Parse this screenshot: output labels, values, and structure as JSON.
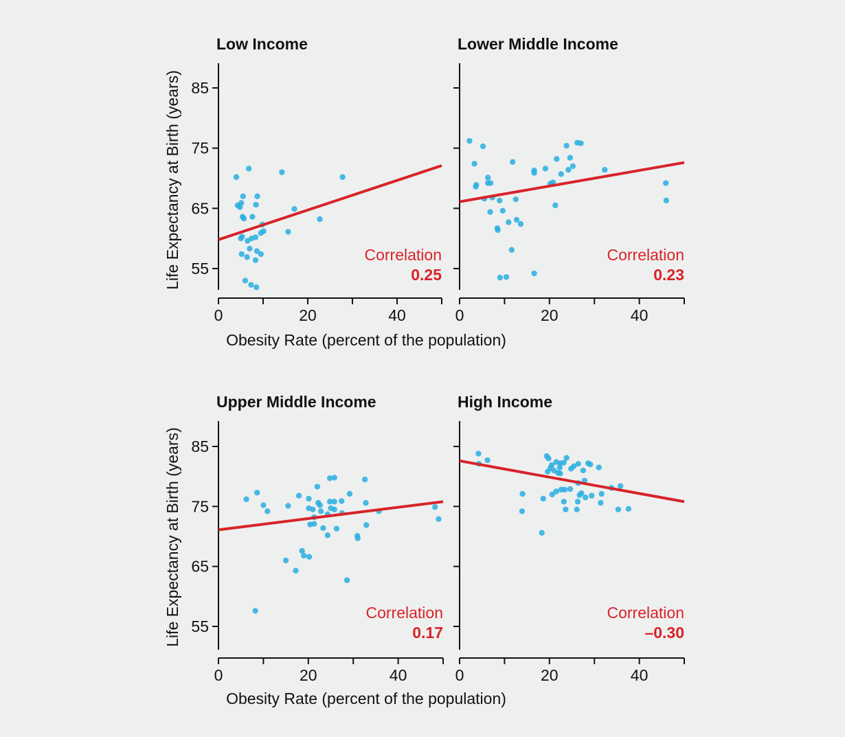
{
  "colors": {
    "background": "#eef0ef",
    "point": "#29aee0",
    "trend": "#d8232a",
    "correlation": "#d8232a",
    "axis": "#111111"
  },
  "axes_text": {
    "ylabel": "Life Expectancy at Birth (years)",
    "xlabel": "Obesity Rate (percent of the population)",
    "correlation_label": "Correlation"
  },
  "chart_data": [
    {
      "type": "scatter",
      "title": "Low Income",
      "xlabel": "Obesity Rate (percent of the population)",
      "ylabel": "Life Expectancy at Birth (years)",
      "xlim": [
        0,
        50
      ],
      "ylim": [
        51,
        90
      ],
      "xticks": [
        0,
        20,
        40
      ],
      "yticks": [
        55,
        65,
        75,
        85
      ],
      "correlation": "0.25",
      "trend": [
        [
          0,
          59.8
        ],
        [
          50,
          72.1
        ]
      ],
      "points": [
        [
          4,
          70.2
        ],
        [
          6.8,
          71.6
        ],
        [
          14.2,
          71
        ],
        [
          27.8,
          70.2
        ],
        [
          5.5,
          67
        ],
        [
          8.7,
          67
        ],
        [
          4.3,
          65.5
        ],
        [
          5.1,
          65.9
        ],
        [
          4.8,
          65.2
        ],
        [
          8.4,
          65.6
        ],
        [
          17,
          64.9
        ],
        [
          5.4,
          63.6
        ],
        [
          5.7,
          63.3
        ],
        [
          7.6,
          63.6
        ],
        [
          22.7,
          63.2
        ],
        [
          9.8,
          62.3
        ],
        [
          10.1,
          61.2
        ],
        [
          9.5,
          60.9
        ],
        [
          15.6,
          61.1
        ],
        [
          5.3,
          60.3
        ],
        [
          5.0,
          60.0
        ],
        [
          6.5,
          59.6
        ],
        [
          7.4,
          60.0
        ],
        [
          8.3,
          60.2
        ],
        [
          7.0,
          58.3
        ],
        [
          8.6,
          57.9
        ],
        [
          9.5,
          57.4
        ],
        [
          5.2,
          57.4
        ],
        [
          6.4,
          56.9
        ],
        [
          8.3,
          56.4
        ],
        [
          6.0,
          53.0
        ],
        [
          7.3,
          52.3
        ],
        [
          8.5,
          51.9
        ]
      ]
    },
    {
      "type": "scatter",
      "title": "Lower Middle Income",
      "xlabel": "",
      "ylabel": "",
      "xlim": [
        0,
        50
      ],
      "ylim": [
        51,
        90
      ],
      "xticks": [
        0,
        20,
        40
      ],
      "yticks": [
        55,
        65,
        75,
        85
      ],
      "correlation": "0.23",
      "trend": [
        [
          0,
          66.1
        ],
        [
          50,
          72.6
        ]
      ],
      "points": [
        [
          2.2,
          76.2
        ],
        [
          5.2,
          75.3
        ],
        [
          23.8,
          75.4
        ],
        [
          26.2,
          75.9
        ],
        [
          27,
          75.8
        ],
        [
          3.3,
          72.4
        ],
        [
          11.8,
          72.7
        ],
        [
          21.6,
          73.2
        ],
        [
          24.6,
          73.4
        ],
        [
          16.6,
          71.3
        ],
        [
          16.6,
          70.9
        ],
        [
          19.1,
          71.6
        ],
        [
          24.2,
          71.4
        ],
        [
          25.2,
          72.0
        ],
        [
          22.6,
          70.7
        ],
        [
          32.3,
          71.4
        ],
        [
          3.7,
          68.9
        ],
        [
          3.6,
          68.6
        ],
        [
          6.3,
          70.1
        ],
        [
          6.3,
          69.2
        ],
        [
          6.9,
          69.2
        ],
        [
          20.2,
          69.1
        ],
        [
          20.8,
          69.3
        ],
        [
          45.9,
          69.2
        ],
        [
          5.5,
          66.6
        ],
        [
          7.3,
          66.8
        ],
        [
          8.9,
          66.3
        ],
        [
          12.5,
          66.5
        ],
        [
          21.3,
          65.5
        ],
        [
          46.0,
          66.3
        ],
        [
          6.8,
          64.4
        ],
        [
          9.6,
          64.6
        ],
        [
          8.4,
          61.7
        ],
        [
          8.5,
          61.4
        ],
        [
          10.9,
          62.7
        ],
        [
          12.7,
          63.1
        ],
        [
          13.6,
          62.4
        ],
        [
          11.6,
          58.1
        ],
        [
          16.6,
          54.2
        ],
        [
          9.0,
          53.5
        ],
        [
          10.4,
          53.6
        ]
      ]
    },
    {
      "type": "scatter",
      "title": "Upper Middle Income",
      "xlabel": "Obesity Rate (percent of the population)",
      "ylabel": "Life Expectancy at Birth (years)",
      "xlim": [
        0,
        50
      ],
      "ylim": [
        51,
        90
      ],
      "xticks": [
        0,
        20,
        40
      ],
      "yticks": [
        55,
        65,
        75,
        85
      ],
      "correlation": "0.17",
      "trend": [
        [
          0,
          71.1
        ],
        [
          50,
          75.8
        ]
      ],
      "points": [
        [
          24.8,
          79.7
        ],
        [
          25.8,
          79.8
        ],
        [
          32.6,
          79.5
        ],
        [
          22,
          78.3
        ],
        [
          8.6,
          77.3
        ],
        [
          17.9,
          76.8
        ],
        [
          29.2,
          77.1
        ],
        [
          6.2,
          76.2
        ],
        [
          20.1,
          76.3
        ],
        [
          24.8,
          75.8
        ],
        [
          25.8,
          75.8
        ],
        [
          27.4,
          75.9
        ],
        [
          32.8,
          75.6
        ],
        [
          22.2,
          75.6
        ],
        [
          22.6,
          75.2
        ],
        [
          10.0,
          75.2
        ],
        [
          15.5,
          75.1
        ],
        [
          20.1,
          74.7
        ],
        [
          21.0,
          74.5
        ],
        [
          22.8,
          74.2
        ],
        [
          25.0,
          74.7
        ],
        [
          25.8,
          74.5
        ],
        [
          35.7,
          74.2
        ],
        [
          48.2,
          74.9
        ],
        [
          10.9,
          74.2
        ],
        [
          24.3,
          73.7
        ],
        [
          27.5,
          73.9
        ],
        [
          21.3,
          73.2
        ],
        [
          20.4,
          72.0
        ],
        [
          21.3,
          72.1
        ],
        [
          49.0,
          72.9
        ],
        [
          23.3,
          71.4
        ],
        [
          26.3,
          71.3
        ],
        [
          32.9,
          71.9
        ],
        [
          24.3,
          70.2
        ],
        [
          30.9,
          70.1
        ],
        [
          31.0,
          69.7
        ],
        [
          18.6,
          67.6
        ],
        [
          19.0,
          66.8
        ],
        [
          20.2,
          66.6
        ],
        [
          15.0,
          66.0
        ],
        [
          17.2,
          64.3
        ],
        [
          28.6,
          62.7
        ],
        [
          8.2,
          57.6
        ]
      ]
    },
    {
      "type": "scatter",
      "title": "High Income",
      "xlabel": "",
      "ylabel": "",
      "xlim": [
        0,
        50
      ],
      "ylim": [
        51,
        90
      ],
      "xticks": [
        0,
        20,
        40
      ],
      "yticks": [
        55,
        65,
        75,
        85
      ],
      "correlation": "–0.30",
      "trend": [
        [
          0,
          82.6
        ],
        [
          50,
          75.8
        ]
      ],
      "points": [
        [
          4.2,
          83.8
        ],
        [
          6.2,
          82.7
        ],
        [
          4.3,
          82.1
        ],
        [
          19.4,
          83.4
        ],
        [
          19.8,
          83.0
        ],
        [
          23.8,
          83.1
        ],
        [
          21.5,
          82.4
        ],
        [
          22.4,
          82.2
        ],
        [
          23.2,
          82.3
        ],
        [
          26.4,
          82.1
        ],
        [
          28.6,
          82.2
        ],
        [
          29.1,
          82.0
        ],
        [
          20.5,
          81.9
        ],
        [
          25.4,
          81.7
        ],
        [
          31.0,
          81.5
        ],
        [
          20.2,
          81.4
        ],
        [
          21.0,
          81.0
        ],
        [
          22.3,
          81.5
        ],
        [
          24.8,
          81.3
        ],
        [
          27.5,
          81.0
        ],
        [
          19.6,
          80.8
        ],
        [
          21.9,
          80.6
        ],
        [
          22.4,
          80.5
        ],
        [
          26.4,
          78.9
        ],
        [
          27.8,
          79.3
        ],
        [
          33.8,
          78.1
        ],
        [
          35.8,
          78.4
        ],
        [
          21.5,
          77.5
        ],
        [
          22.6,
          77.8
        ],
        [
          23.4,
          77.8
        ],
        [
          24.6,
          77.9
        ],
        [
          20.6,
          77.0
        ],
        [
          27.1,
          77.2
        ],
        [
          26.7,
          76.9
        ],
        [
          28.0,
          76.5
        ],
        [
          29.4,
          76.8
        ],
        [
          31.6,
          77.1
        ],
        [
          14.0,
          77.1
        ],
        [
          18.6,
          76.3
        ],
        [
          23.2,
          75.8
        ],
        [
          26.3,
          75.8
        ],
        [
          31.4,
          75.6
        ],
        [
          13.9,
          74.2
        ],
        [
          23.6,
          74.5
        ],
        [
          26.1,
          74.5
        ],
        [
          35.3,
          74.5
        ],
        [
          37.6,
          74.6
        ],
        [
          18.3,
          70.6
        ]
      ]
    }
  ]
}
